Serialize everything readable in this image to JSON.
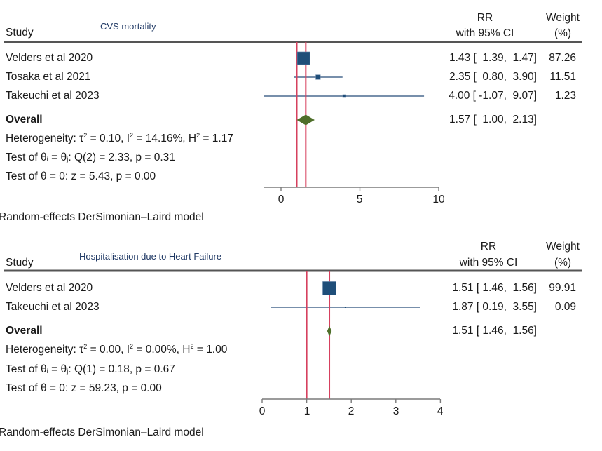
{
  "chart_data": [
    {
      "type": "forest",
      "title": "CVS mortality",
      "columns": {
        "study": "Study",
        "effect_line1": "RR",
        "effect_line2": "with 95% CI",
        "weight_line1": "Weight",
        "weight_line2": "(%)"
      },
      "studies": [
        {
          "name": "Velders et al 2020",
          "rr": 1.43,
          "lo": 1.39,
          "hi": 1.47,
          "weight": 87.26,
          "rr_text": "1.43 [  1.39,  1.47]",
          "weight_text": "87.26"
        },
        {
          "name": "Tosaka et al 2021",
          "rr": 2.35,
          "lo": 0.8,
          "hi": 3.9,
          "weight": 11.51,
          "rr_text": "2.35 [  0.80,  3.90]",
          "weight_text": "11.51"
        },
        {
          "name": "Takeuchi et al 2023",
          "rr": 4.0,
          "lo": -1.07,
          "hi": 9.07,
          "weight": 1.23,
          "rr_text": "4.00 [ -1.07,  9.07]",
          "weight_text": "1.23"
        }
      ],
      "overall": {
        "label": "Overall",
        "rr": 1.57,
        "lo": 1.0,
        "hi": 2.13,
        "rr_text": "1.57 [  1.00,  2.13]"
      },
      "heterogeneity": {
        "prefix": "Heterogeneity: τ",
        "tau2": "0.10",
        "i2": "14.16%",
        "h2": "1.17"
      },
      "test_theta_ij": {
        "prefix": "Test of θ",
        "q": "Q(2) = 2.33, p = 0.31"
      },
      "test_theta_0": "Test of θ = 0: z = 5.43, p = 0.00",
      "model_note": "Random-effects DerSimonian–Laird model",
      "reference_lines": [
        1.0,
        1.57
      ],
      "xaxis": {
        "range": [
          -1.07,
          10
        ],
        "ticks": [
          0,
          5,
          10
        ],
        "tick_labels": [
          "0",
          "5",
          "10"
        ]
      }
    },
    {
      "type": "forest",
      "title": "Hospitalisation due to Heart Failure",
      "columns": {
        "study": "Study",
        "effect_line1": "RR",
        "effect_line2": "with 95% CI",
        "weight_line1": "Weight",
        "weight_line2": "(%)"
      },
      "studies": [
        {
          "name": "Velders et al 2020",
          "rr": 1.51,
          "lo": 1.46,
          "hi": 1.56,
          "weight": 99.91,
          "rr_text": "1.51 [ 1.46,  1.56]",
          "weight_text": "99.91"
        },
        {
          "name": "Takeuchi et al 2023",
          "rr": 1.87,
          "lo": 0.19,
          "hi": 3.55,
          "weight": 0.09,
          "rr_text": "1.87 [ 0.19,  3.55]",
          "weight_text": "0.09"
        }
      ],
      "overall": {
        "label": "Overall",
        "rr": 1.51,
        "lo": 1.46,
        "hi": 1.56,
        "rr_text": "1.51 [ 1.46,  1.56]"
      },
      "heterogeneity": {
        "prefix": "Heterogeneity: τ",
        "tau2": "0.00",
        "i2": "0.00%",
        "h2": "1.00"
      },
      "test_theta_ij": {
        "prefix": "Test of θ",
        "q": "Q(1) = 0.18, p = 0.67"
      },
      "test_theta_0": "Test of θ = 0: z = 59.23, p = 0.00",
      "model_note": "Random-effects DerSimonian–Laird model",
      "reference_lines": [
        1.0,
        1.51
      ],
      "xaxis": {
        "range": [
          0,
          4
        ],
        "ticks": [
          0,
          1,
          2,
          3,
          4
        ],
        "tick_labels": [
          "0",
          "1",
          "2",
          "3",
          "4"
        ]
      }
    }
  ],
  "colors": {
    "marker": "#1f4e79",
    "ci_line": "#4a6a8f",
    "diamond": "#4f6f2a",
    "ref_line": "#d6405e",
    "axis": "#7a7a7a",
    "header_rule": "#555555",
    "title": "#1f3864"
  }
}
